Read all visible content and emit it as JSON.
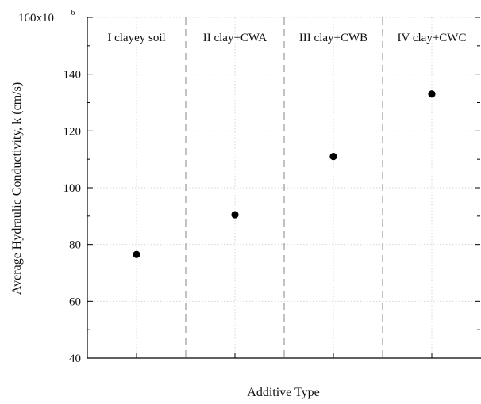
{
  "chart_data": {
    "type": "scatter",
    "xlabel": "Additive Type",
    "ylabel": "Average Hydraulic Conductivity, k (cm/s)",
    "ylim": [
      40,
      160
    ],
    "y_ticks": [
      40,
      60,
      80,
      100,
      120,
      140
    ],
    "y_top_tick_label": "160x10",
    "y_top_tick_exponent": "-6",
    "grid": true,
    "categories": [
      "I clayey soil",
      "II clay+CWA",
      "III clay+CWB",
      "IV clay+CWC"
    ],
    "series": [
      {
        "values": [
          76.5,
          90.5,
          111,
          133
        ]
      }
    ]
  }
}
